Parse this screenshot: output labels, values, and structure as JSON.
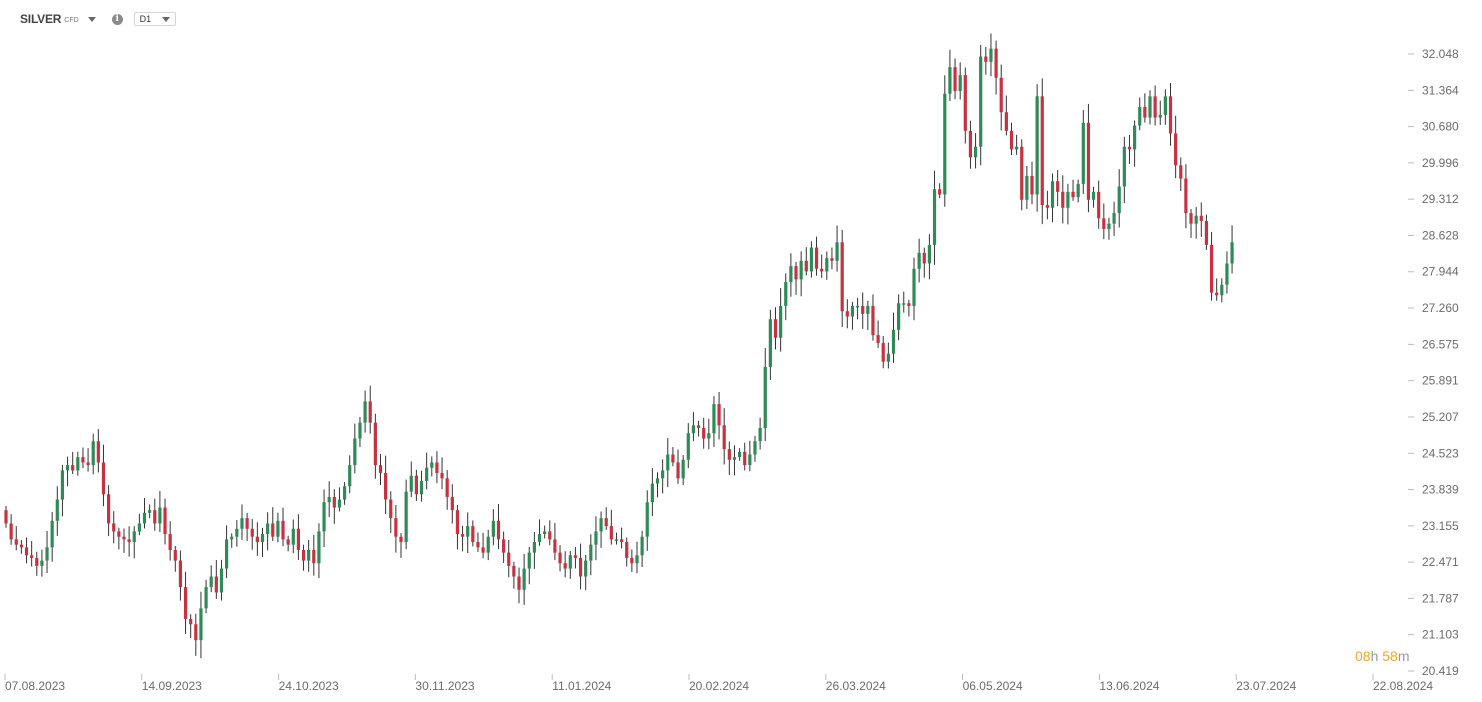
{
  "toolbar": {
    "symbol": "SILVER",
    "instrument_type": "CFD",
    "timeframe": "D1"
  },
  "countdown": {
    "hours": "08",
    "hours_unit": "h",
    "minutes": "58",
    "minutes_unit": "m"
  },
  "colors": {
    "up": "#2e8b57",
    "down": "#c8313f",
    "wick": "#333333",
    "axis_text": "#6b6b6b",
    "countdown": "#f5a623"
  },
  "chart_data": {
    "type": "candlestick",
    "title": "",
    "xlabel": "",
    "ylabel": "",
    "ylim": [
      20.419,
      32.4
    ],
    "y_ticks": [
      "32.048",
      "31.364",
      "30.680",
      "29.996",
      "29.312",
      "28.628",
      "27.944",
      "27.260",
      "26.575",
      "25.891",
      "25.207",
      "24.523",
      "23.839",
      "23.155",
      "22.471",
      "21.787",
      "21.103",
      "20.419"
    ],
    "x_ticks": [
      "07.08.2023",
      "14.09.2023",
      "24.10.2023",
      "30.11.2023",
      "11.01.2024",
      "20.02.2024",
      "26.03.2024",
      "06.05.2024",
      "13.06.2024",
      "23.07.2024",
      "22.08.2024"
    ],
    "close": [
      23.2,
      22.9,
      22.8,
      22.75,
      22.6,
      22.55,
      22.4,
      22.5,
      22.75,
      23.25,
      23.65,
      24.2,
      24.3,
      24.2,
      24.45,
      24.35,
      24.3,
      24.75,
      24.35,
      23.75,
      23.2,
      23.05,
      22.95,
      22.9,
      22.85,
      23.05,
      23.2,
      23.4,
      23.45,
      23.2,
      23.5,
      23.0,
      22.7,
      22.5,
      22.0,
      21.4,
      21.3,
      21.0,
      21.6,
      22.0,
      22.2,
      21.9,
      22.35,
      22.9,
      22.95,
      23.1,
      23.3,
      23.1,
      22.95,
      22.85,
      23.0,
      23.2,
      22.95,
      23.25,
      22.9,
      22.8,
      23.1,
      22.7,
      22.5,
      22.7,
      22.45,
      23.05,
      23.6,
      23.7,
      23.5,
      23.65,
      23.9,
      24.3,
      24.8,
      25.1,
      25.5,
      25.1,
      24.3,
      24.15,
      23.65,
      23.3,
      22.95,
      22.85,
      23.8,
      24.1,
      23.75,
      24.0,
      24.25,
      24.35,
      24.15,
      24.05,
      23.7,
      23.45,
      23.0,
      22.95,
      23.15,
      22.85,
      22.75,
      22.65,
      22.95,
      23.25,
      22.9,
      22.65,
      22.4,
      22.2,
      21.95,
      22.35,
      22.65,
      22.85,
      23.0,
      23.05,
      22.9,
      22.65,
      22.45,
      22.35,
      22.6,
      22.55,
      22.2,
      22.5,
      22.8,
      23.05,
      23.3,
      23.15,
      22.9,
      22.9,
      22.85,
      22.55,
      22.45,
      22.6,
      22.95,
      23.6,
      23.95,
      24.05,
      24.2,
      24.5,
      24.35,
      24.05,
      24.4,
      24.9,
      25.05,
      25.0,
      24.8,
      24.9,
      25.45,
      25.05,
      24.6,
      24.4,
      24.45,
      24.55,
      24.3,
      24.5,
      24.75,
      25.0,
      26.15,
      27.05,
      26.7,
      27.3,
      27.75,
      28.05,
      27.8,
      28.15,
      27.95,
      28.4,
      28.0,
      27.95,
      28.2,
      28.15,
      28.5,
      27.2,
      27.1,
      27.3,
      27.3,
      27.15,
      27.3,
      26.75,
      26.6,
      26.25,
      26.4,
      26.85,
      27.35,
      27.35,
      27.3,
      28.0,
      28.3,
      28.1,
      28.45,
      29.5,
      29.4,
      31.3,
      31.8,
      31.35,
      31.65,
      30.6,
      30.1,
      30.3,
      32.0,
      31.9,
      32.15,
      31.6,
      30.95,
      30.6,
      30.25,
      30.3,
      29.3,
      29.75,
      29.4,
      31.25,
      29.2,
      29.15,
      29.65,
      29.45,
      29.15,
      29.45,
      29.35,
      29.6,
      30.75,
      29.3,
      29.45,
      28.95,
      28.75,
      28.85,
      29.05,
      29.55,
      30.3,
      30.25,
      30.7,
      31.05,
      30.85,
      31.25,
      30.85,
      30.9,
      31.25,
      30.55,
      29.95,
      29.7,
      29.05,
      28.85,
      29.0,
      28.9,
      28.45,
      27.55,
      27.5,
      27.7,
      28.1,
      28.5
    ]
  }
}
